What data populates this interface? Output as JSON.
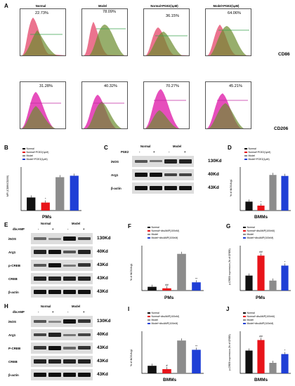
{
  "panels": {
    "A": {
      "letter": "A",
      "columns": [
        "Normal",
        "Model",
        "Normal+PGE2(1μM)",
        "Model+PGE2(1μM)"
      ],
      "cd86_pcts": [
        "22.73%",
        "78.09%",
        "36.15%",
        "64.06%"
      ],
      "cd206_pcts": [
        "31.28%",
        "40.32%",
        "70.27%",
        "45.21%"
      ],
      "cd86_label": "CD86",
      "cd206_label": "CD206"
    },
    "B": {
      "letter": "B",
      "xlabel": "PMs",
      "ylabel": "MFI (CD86/CD206)",
      "legend": [
        "Normal",
        "Normal+PGE2(1μM)",
        "Model",
        "Model+PGE2(1μM)"
      ],
      "annotations": [
        "*"
      ]
    },
    "C": {
      "letter": "C",
      "pge2": "PGE2",
      "normal": "Normal",
      "model": "Model",
      "signs": [
        "-",
        "+",
        "-",
        "+"
      ],
      "rows": [
        "iNOS",
        "Arg1",
        "β-actin"
      ],
      "kd": [
        "130Kd",
        "40Kd",
        "43Kd"
      ]
    },
    "D": {
      "letter": "D",
      "xlabel": "BMMs",
      "ylabel": "% of iNOS/Arg1",
      "legend": [
        "Normal",
        "Normal+PGE2(1μM)",
        "Model",
        "Model+PGE2(1μM)"
      ],
      "annotations": [
        "*"
      ]
    },
    "E": {
      "letter": "E",
      "treat": "dbcAMP",
      "normal": "Normal",
      "model": "Model",
      "signs": [
        "-",
        "+",
        "-",
        "+"
      ],
      "rows": [
        "iNOS",
        "Arg1",
        "p-CREB",
        "CREB",
        "β-actin"
      ],
      "kd": [
        "130Kd",
        "40Kd",
        "43Kd",
        "43Kd",
        "43Kd"
      ]
    },
    "F": {
      "letter": "F",
      "xlabel": "PMs",
      "ylabel": "% of iNOS/Arg1",
      "legend": [
        "Normal",
        "Normal+dbcAMP(100nM)",
        "Model",
        "Model+dbcAMP(100nM)"
      ],
      "annotations": [
        "##",
        "**"
      ]
    },
    "G": {
      "letter": "G",
      "xlabel": "PMs",
      "ylabel": "p-CREB expression (% of CREB)",
      "legend": [
        "Normal",
        "Normal+dbcAMP(100nM)",
        "Model",
        "Model+dbcAMP(100nM)"
      ],
      "annotations": [
        "##",
        "*"
      ]
    },
    "H": {
      "letter": "H",
      "treat": "dbcAMP",
      "normal": "Normal",
      "model": "Model",
      "signs": [
        "-",
        "+",
        "-",
        "+"
      ],
      "rows": [
        "iNOS",
        "Arg1",
        "P-CREB",
        "CREB",
        "β-actin"
      ],
      "kd": [
        "130Kd",
        "40Kd",
        "43Kd",
        "43Kd",
        "43Kd"
      ]
    },
    "I": {
      "letter": "I",
      "xlabel": "BMMs",
      "ylabel": "% of iNOS/Arg1",
      "legend": [
        "Normal",
        "Normal+dbcAMP(100nM)",
        "Model",
        "Model+dbcAMP(100nM)"
      ],
      "annotations": [
        "#",
        "**"
      ]
    },
    "J": {
      "letter": "J",
      "xlabel": "BMMs",
      "ylabel": "p-CREB expression (% of CREB)",
      "legend": [
        "Normal",
        "Normal+dbcAMP(100nM)",
        "Model",
        "Model+dbcAMP(100nM)"
      ],
      "annotations": [
        "##",
        "*"
      ]
    }
  },
  "colors": {
    "black": "#111111",
    "red": "#e8141a",
    "gray": "#8c8c8c",
    "blue": "#1f3fd6"
  },
  "chart_data": [
    {
      "panel": "B",
      "type": "bar",
      "categories": [
        "Normal",
        "Normal+PGE2(1μM)",
        "Model",
        "Model+PGE2(1μM)"
      ],
      "values": [
        0.9,
        0.55,
        2.3,
        2.4
      ],
      "xlabel": "PMs",
      "ylabel": "MFI (CD86/CD206)"
    },
    {
      "panel": "D",
      "type": "bar",
      "categories": [
        "Normal",
        "Normal+PGE2(1μM)",
        "Model",
        "Model+PGE2(1μM)"
      ],
      "values": [
        45,
        25,
        180,
        175
      ],
      "xlabel": "BMMs",
      "ylabel": "% of iNOS/Arg1"
    },
    {
      "panel": "F",
      "type": "bar",
      "categories": [
        "Normal",
        "Normal+dbcAMP(100nM)",
        "Model",
        "Model+dbcAMP(100nM)"
      ],
      "values": [
        25,
        15,
        245,
        55
      ],
      "xlabel": "PMs",
      "ylabel": "% of iNOS/Arg1"
    },
    {
      "panel": "G",
      "type": "bar",
      "categories": [
        "Normal",
        "Normal+dbcAMP(100nM)",
        "Model",
        "Model+dbcAMP(100nM)"
      ],
      "values": [
        60,
        140,
        40,
        100
      ],
      "xlabel": "PMs",
      "ylabel": "p-CREB expression (% of CREB)"
    },
    {
      "panel": "I",
      "type": "bar",
      "categories": [
        "Normal",
        "Normal+dbcAMP(100nM)",
        "Model",
        "Model+dbcAMP(100nM)"
      ],
      "values": [
        45,
        25,
        195,
        140
      ],
      "xlabel": "BMMs",
      "ylabel": "% of iNOS/Arg1"
    },
    {
      "panel": "J",
      "type": "bar",
      "categories": [
        "Normal",
        "Normal+dbcAMP(100nM)",
        "Model",
        "Model+dbcAMP(100nM)"
      ],
      "values": [
        65,
        95,
        30,
        55
      ],
      "xlabel": "BMMs",
      "ylabel": "p-CREB expression (% of CREB)"
    }
  ]
}
